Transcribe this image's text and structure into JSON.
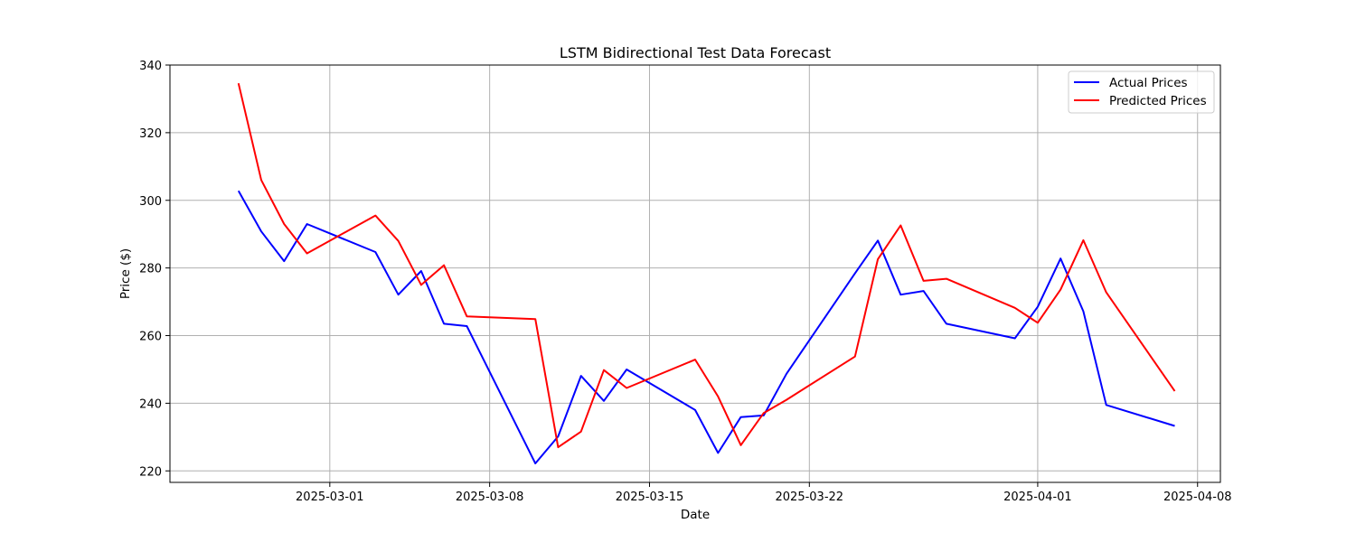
{
  "chart_data": {
    "type": "line",
    "title": "LSTM Bidirectional Test Data Forecast",
    "xlabel": "Date",
    "ylabel": "Price ($)",
    "x_tick_labels": [
      "2025-03-01",
      "2025-03-08",
      "2025-03-15",
      "2025-03-22",
      "2025-04-01",
      "2025-04-08"
    ],
    "y_tick_labels": [
      "220",
      "240",
      "260",
      "280",
      "300",
      "320",
      "340"
    ],
    "x_ticks": [
      "2025-03-01",
      "2025-03-08",
      "2025-03-15",
      "2025-03-22",
      "2025-04-01",
      "2025-04-08"
    ],
    "y_ticks": [
      220,
      240,
      260,
      280,
      300,
      320,
      340
    ],
    "xlim": [
      "2025-02-22",
      "2025-04-09"
    ],
    "ylim": [
      216.6,
      340
    ],
    "grid": true,
    "legend_position": "top-right",
    "x": [
      "2025-02-25",
      "2025-02-26",
      "2025-02-27",
      "2025-02-28",
      "2025-03-03",
      "2025-03-04",
      "2025-03-05",
      "2025-03-06",
      "2025-03-07",
      "2025-03-10",
      "2025-03-11",
      "2025-03-12",
      "2025-03-13",
      "2025-03-14",
      "2025-03-17",
      "2025-03-18",
      "2025-03-19",
      "2025-03-20",
      "2025-03-21",
      "2025-03-24",
      "2025-03-25",
      "2025-03-26",
      "2025-03-27",
      "2025-03-28",
      "2025-03-31",
      "2025-04-01",
      "2025-04-02",
      "2025-04-03",
      "2025-04-04",
      "2025-04-07"
    ],
    "series": [
      {
        "name": "Actual Prices",
        "color": "#0000ff",
        "values": [
          302.8,
          290.8,
          282.0,
          293.0,
          284.7,
          272.1,
          279.1,
          263.5,
          262.8,
          222.2,
          230.2,
          248.1,
          240.7,
          250.0,
          238.0,
          225.3,
          235.9,
          236.4,
          248.7,
          278.4,
          288.1,
          272.1,
          273.2,
          263.5,
          259.2,
          268.5,
          282.8,
          267.2,
          239.5,
          233.3
        ]
      },
      {
        "name": "Predicted Prices",
        "color": "#ff0000",
        "values": [
          334.6,
          306.0,
          293.0,
          284.3,
          295.5,
          288.0,
          275.0,
          280.8,
          265.7,
          264.9,
          227.0,
          231.6,
          249.8,
          244.5,
          252.9,
          242.0,
          227.6,
          237.1,
          241.0,
          253.8,
          282.6,
          292.6,
          276.2,
          276.8,
          268.2,
          263.8,
          273.6,
          288.2,
          272.8,
          243.6
        ]
      }
    ]
  }
}
